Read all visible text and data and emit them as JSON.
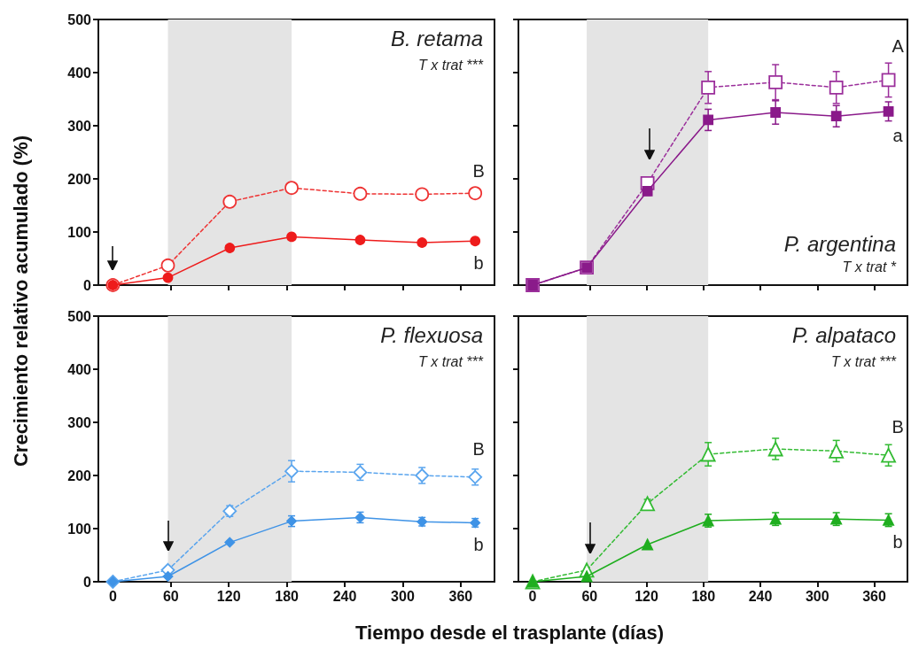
{
  "chart_data": [
    {
      "type": "line",
      "title": "B. retama",
      "ylabel": "Crecimiento relativo acumulado (%)",
      "x": [
        0,
        57,
        121,
        185,
        256,
        320,
        375
      ],
      "marker": "circle",
      "xlim": [
        -15,
        395
      ],
      "xticks": [
        0,
        60,
        120,
        180,
        240,
        300,
        360
      ],
      "ylim": [
        0,
        500
      ],
      "yticks": [
        0,
        100,
        200,
        300,
        400,
        500
      ],
      "tick_labels": "y",
      "series": [
        {
          "color": "#ee3333",
          "line_style": "dashed",
          "values": [
            0,
            37,
            157,
            183,
            172,
            171,
            173
          ],
          "errors": [
            null,
            null,
            6,
            10,
            8,
            8,
            8
          ]
        },
        {
          "color": "#ee1c1c",
          "line_style": "solid",
          "values": [
            0,
            14,
            70,
            91,
            85,
            80,
            83
          ],
          "errors": [
            null,
            null,
            null,
            null,
            null,
            null,
            null
          ]
        }
      ],
      "bands": [
        {
          "axis": "x",
          "from": 57,
          "to": 185,
          "color": "#e4e4e4"
        }
      ],
      "annotations": [
        "T x trat ***",
        "B",
        "b"
      ]
    },
    {
      "type": "line",
      "title": "P. argentina",
      "x": [
        0,
        57,
        121,
        185,
        256,
        320,
        375
      ],
      "marker": "square",
      "xlim": [
        -15,
        395
      ],
      "xticks": [
        0,
        60,
        120,
        180,
        240,
        300,
        360
      ],
      "ylim": [
        0,
        500
      ],
      "yticks": [
        0,
        100,
        200,
        300,
        400,
        500
      ],
      "tick_labels": false,
      "series": [
        {
          "color": "#9b2f9b",
          "line_style": "dashed",
          "values": [
            0,
            33,
            192,
            372,
            382,
            372,
            386
          ],
          "errors": [
            null,
            null,
            10,
            30,
            33,
            30,
            32
          ]
        },
        {
          "color": "#8a1a8a",
          "line_style": "solid",
          "values": [
            0,
            33,
            177,
            311,
            325,
            318,
            327
          ],
          "errors": [
            null,
            null,
            8,
            20,
            22,
            20,
            18
          ]
        }
      ],
      "bands": [
        {
          "axis": "x",
          "from": 57,
          "to": 185,
          "color": "#e4e4e4"
        }
      ],
      "annotations": [
        "T x trat *",
        "A",
        "a"
      ]
    },
    {
      "type": "line",
      "title": "P. flexuosa",
      "xlabel": "Tiempo desde el trasplante (días)",
      "x": [
        0,
        57,
        121,
        185,
        256,
        320,
        375
      ],
      "marker": "diamond",
      "xlim": [
        -15,
        395
      ],
      "xticks": [
        0,
        60,
        120,
        180,
        240,
        300,
        360
      ],
      "ylim": [
        0,
        500
      ],
      "yticks": [
        0,
        100,
        200,
        300,
        400,
        500
      ],
      "series": [
        {
          "color": "#5aa5ee",
          "line_style": "dashed",
          "values": [
            0,
            22,
            133,
            208,
            206,
            200,
            197
          ],
          "errors": [
            null,
            null,
            10,
            20,
            15,
            15,
            15
          ]
        },
        {
          "color": "#3f93e6",
          "line_style": "solid",
          "values": [
            0,
            10,
            74,
            114,
            121,
            113,
            111
          ],
          "errors": [
            null,
            null,
            null,
            10,
            10,
            8,
            8
          ]
        }
      ],
      "bands": [
        {
          "axis": "x",
          "from": 57,
          "to": 185,
          "color": "#e4e4e4"
        }
      ],
      "annotations": [
        "T x trat ***",
        "B",
        "b"
      ]
    },
    {
      "type": "line",
      "title": "P. alpataco",
      "x": [
        0,
        57,
        121,
        185,
        256,
        320,
        375
      ],
      "marker": "triangle",
      "xlim": [
        -15,
        395
      ],
      "xticks": [
        0,
        60,
        120,
        180,
        240,
        300,
        360
      ],
      "ylim": [
        0,
        500
      ],
      "yticks": [
        0,
        100,
        200,
        300,
        400,
        500
      ],
      "tick_labels": "x",
      "series": [
        {
          "color": "#33bb33",
          "line_style": "dashed",
          "values": [
            0,
            22,
            147,
            240,
            250,
            246,
            238
          ],
          "errors": [
            null,
            null,
            8,
            22,
            20,
            20,
            20
          ]
        },
        {
          "color": "#1fae1f",
          "line_style": "solid",
          "values": [
            0,
            10,
            70,
            115,
            118,
            118,
            116
          ],
          "errors": [
            null,
            null,
            null,
            12,
            12,
            12,
            12
          ]
        }
      ],
      "bands": [
        {
          "axis": "x",
          "from": 57,
          "to": 185,
          "color": "#e4e4e4"
        }
      ],
      "annotations": [
        "T x trat ***",
        "B",
        "b"
      ]
    }
  ]
}
